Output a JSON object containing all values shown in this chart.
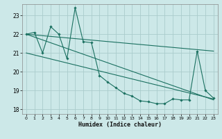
{
  "xlabel": "Humidex (Indice chaleur)",
  "bg_color": "#cce8e8",
  "grid_color": "#aacccc",
  "line_color": "#1a7060",
  "xlim": [
    -0.5,
    23.5
  ],
  "ylim": [
    17.75,
    23.6
  ],
  "yticks": [
    18,
    19,
    20,
    21,
    22,
    23
  ],
  "xticks": [
    0,
    1,
    2,
    3,
    4,
    5,
    6,
    7,
    8,
    9,
    10,
    11,
    12,
    13,
    14,
    15,
    16,
    17,
    18,
    19,
    20,
    21,
    22,
    23
  ],
  "series_x": [
    0,
    1,
    2,
    3,
    4,
    5,
    6,
    7,
    8,
    9,
    10,
    11,
    12,
    13,
    14,
    15,
    16,
    17,
    18,
    19,
    20,
    21,
    22,
    23
  ],
  "series_y": [
    22.0,
    22.1,
    21.0,
    22.4,
    22.0,
    20.7,
    23.4,
    21.6,
    21.55,
    19.8,
    19.45,
    19.15,
    18.85,
    18.7,
    18.45,
    18.4,
    18.3,
    18.3,
    18.55,
    18.5,
    18.5,
    21.1,
    19.0,
    18.6
  ],
  "line1_x": [
    0,
    23
  ],
  "line1_y": [
    22.0,
    21.1
  ],
  "line2_x": [
    0,
    23
  ],
  "line2_y": [
    21.0,
    18.55
  ],
  "line3_x": [
    0,
    23
  ],
  "line3_y": [
    22.0,
    18.5
  ]
}
